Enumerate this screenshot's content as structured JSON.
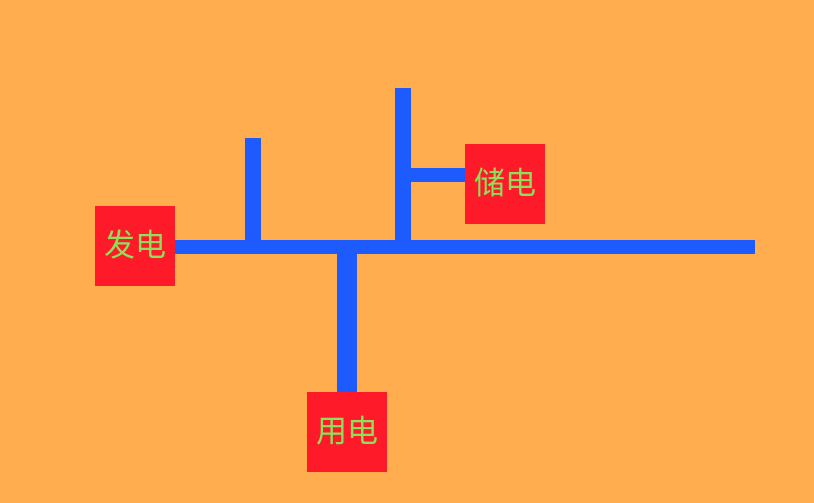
{
  "colors": {
    "background": "#FFAD4F",
    "line": "#1E5BFF",
    "node_fill": "#FF1A2A",
    "node_text": "#8CE05A"
  },
  "nodes": {
    "generation": {
      "label": "发电"
    },
    "storage": {
      "label": "储电"
    },
    "consumption": {
      "label": "用电"
    }
  }
}
